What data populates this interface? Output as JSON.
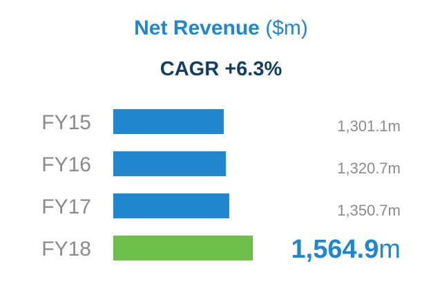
{
  "header": {
    "title_main": "Net Revenue",
    "title_unit": "($m)",
    "subtitle": "CAGR +6.3%"
  },
  "colors": {
    "bar_default": "#1f86cf",
    "bar_highlight": "#6cc04a",
    "title": "#1f86cf",
    "subtitle": "#113e63",
    "label": "#8a8a8a"
  },
  "chart_data": {
    "type": "bar",
    "orientation": "horizontal",
    "title": "Net Revenue ($m)",
    "subtitle": "CAGR +6.3%",
    "categories": [
      "FY15",
      "FY16",
      "FY17",
      "FY18"
    ],
    "values": [
      1301.1,
      1320.7,
      1350.7,
      1564.9
    ],
    "value_labels": [
      "1,301.1m",
      "1,320.7m",
      "1,350.7m",
      "1,564.9m"
    ],
    "highlight_index": 3,
    "unit": "m",
    "grid": false
  }
}
